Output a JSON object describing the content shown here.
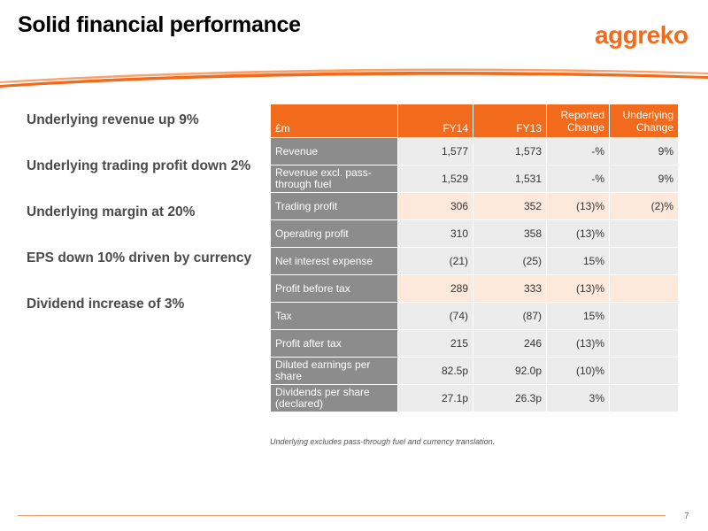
{
  "title": "Solid financial performance",
  "logo": "aggreko",
  "page_number": "7",
  "bullets": [
    "Underlying revenue up 9%",
    "Underlying trading profit down 2%",
    "Underlying margin at 20%",
    "EPS down 10% driven by currency",
    "Dividend increase of 3%"
  ],
  "table": {
    "headers": [
      "£m",
      "FY14",
      "FY13",
      "Reported Change",
      "Underlying Change"
    ],
    "rows": [
      {
        "label": "Revenue",
        "fy14": "1,577",
        "fy13": "1,573",
        "reported": "-%",
        "underlying": "9%"
      },
      {
        "label": "Revenue excl. pass-through fuel",
        "fy14": "1,529",
        "fy13": "1,531",
        "reported": "-%",
        "underlying": "9%"
      },
      {
        "label": "Trading profit",
        "fy14": "306",
        "fy13": "352",
        "reported": "(13)%",
        "underlying": "(2)%"
      },
      {
        "label": "Operating profit",
        "fy14": "310",
        "fy13": "358",
        "reported": "(13)%",
        "underlying": ""
      },
      {
        "label": "Net interest expense",
        "fy14": "(21)",
        "fy13": "(25)",
        "reported": "15%",
        "underlying": ""
      },
      {
        "label": "Profit before tax",
        "fy14": "289",
        "fy13": "333",
        "reported": "(13)%",
        "underlying": ""
      },
      {
        "label": "Tax",
        "fy14": "(74)",
        "fy13": "(87)",
        "reported": "15%",
        "underlying": ""
      },
      {
        "label": "Profit after tax",
        "fy14": "215",
        "fy13": "246",
        "reported": "(13)%",
        "underlying": ""
      },
      {
        "label": "Diluted earnings per share",
        "fy14": "82.5p",
        "fy13": "92.0p",
        "reported": "(10)%",
        "underlying": ""
      },
      {
        "label": "Dividends per share (declared)",
        "fy14": "27.1p",
        "fy13": "26.3p",
        "reported": "3%",
        "underlying": ""
      }
    ]
  },
  "footnote": "Underlying excludes pass-through fuel and currency translation.",
  "colors": {
    "accent": "#f26a1b",
    "label_bg": "#8c8c8c",
    "cell_bg": "#ececec",
    "highlight_bg": "#fde9dc"
  }
}
